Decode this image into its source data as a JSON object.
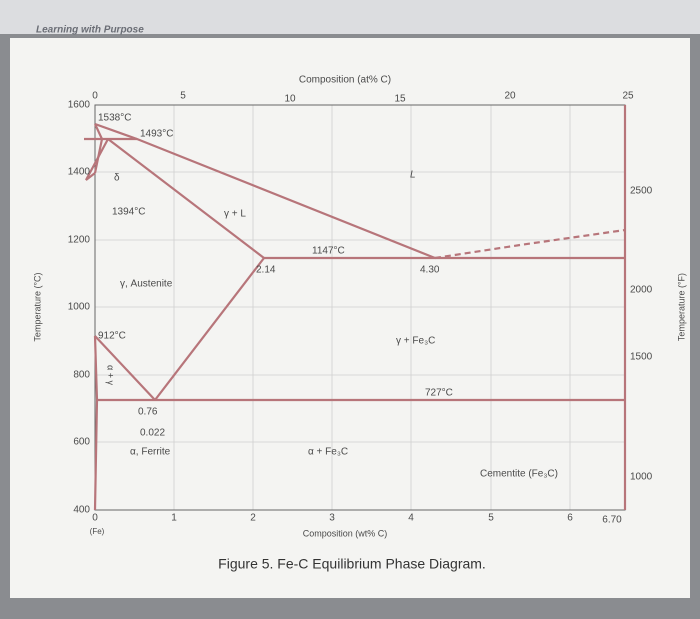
{
  "header": {
    "brand": "Learning with Purpose"
  },
  "figure": {
    "caption": "Figure 5. Fe-C Equilibrium Phase Diagram."
  },
  "axes": {
    "left": {
      "title": "Temperature (°C)",
      "ticks": [
        "1600",
        "1400",
        "1200",
        "1000",
        "800",
        "600",
        "400"
      ]
    },
    "right": {
      "title": "Temperature (°F)",
      "ticks": [
        "2500",
        "2000",
        "1500",
        "1000"
      ]
    },
    "top": {
      "title": "Composition (at% C)",
      "ticks": [
        "0",
        "5",
        "10",
        "15",
        "20",
        "25"
      ]
    },
    "bottom": {
      "title": "Composition (wt% C)",
      "ticks": [
        "0",
        "1",
        "2",
        "3",
        "4",
        "5",
        "6"
      ],
      "end_label": "6.70",
      "origin_note": "(Fe)"
    }
  },
  "labels": {
    "t1538": "1538°C",
    "t1493": "1493°C",
    "t1394": "1394°C",
    "t1147": "1147°C",
    "t912": "912°C",
    "t727": "727°C",
    "c214": "2.14",
    "c430": "4.30",
    "c076": "0.76",
    "c0022": "0.022",
    "liquid": "L",
    "gamma_liquid": "γ + L",
    "delta": "δ",
    "austenite": "γ, Austenite",
    "gamma_fe3c": "γ + Fe₃C",
    "ferrite": "α, Ferrite",
    "alpha_fe3c": "α + Fe₃C",
    "alpha_gamma": "α + γ",
    "cementite": "Cementite (Fe₃C)"
  }
}
